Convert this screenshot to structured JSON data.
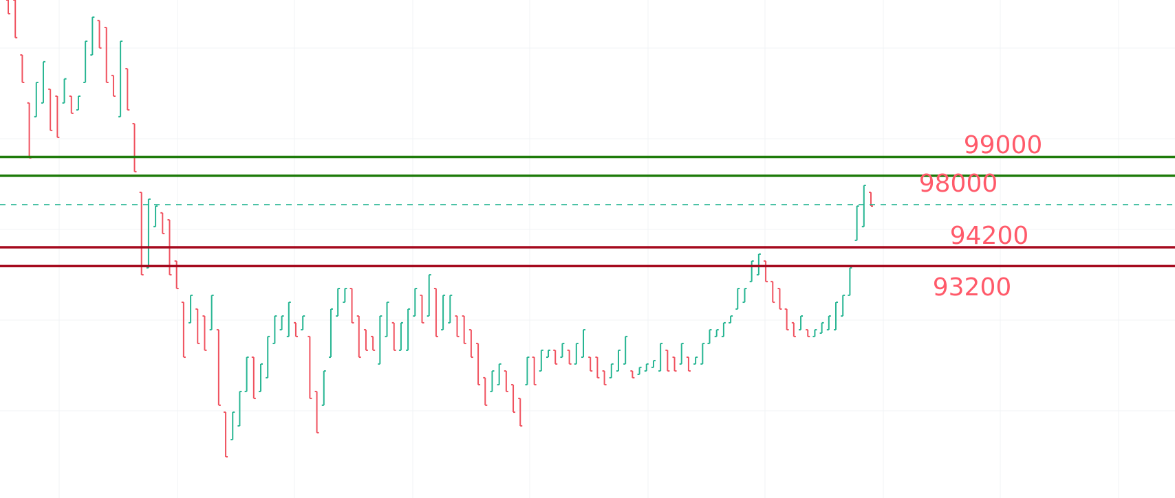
{
  "chart_data": {
    "type": "ohlc",
    "ylim": [
      80880,
      107340
    ],
    "grid": true,
    "colors": {
      "up": "#26b592",
      "down": "#f0525f",
      "support": "#a50a1e",
      "resistance": "#1e7b0a",
      "label": "#ff5a6a",
      "current_line": "#26b592",
      "grid": "#f1f3f6"
    },
    "bars_format": [
      "open",
      "high",
      "low",
      "close"
    ],
    "bars": [
      [
        107340,
        107340,
        106610,
        106610
      ],
      [
        107340,
        107340,
        105340,
        105340
      ],
      [
        104420,
        104420,
        102960,
        102960
      ],
      [
        101870,
        101870,
        98950,
        98950
      ],
      [
        101140,
        102960,
        101140,
        102960
      ],
      [
        101870,
        104060,
        101870,
        104060
      ],
      [
        102600,
        102600,
        100410,
        100410
      ],
      [
        102230,
        102230,
        100040,
        100040
      ],
      [
        101870,
        103150,
        101870,
        103150
      ],
      [
        102230,
        102230,
        101320,
        101320
      ],
      [
        101500,
        102230,
        101500,
        102230
      ],
      [
        102960,
        105150,
        102960,
        105150
      ],
      [
        104420,
        106430,
        104420,
        106430
      ],
      [
        106250,
        106250,
        104790,
        104790
      ],
      [
        105880,
        105880,
        102960,
        102960
      ],
      [
        103330,
        103330,
        102230,
        102230
      ],
      [
        101140,
        105150,
        101140,
        105150
      ],
      [
        103690,
        103690,
        101500,
        101500
      ],
      [
        100770,
        100770,
        98220,
        98220
      ],
      [
        97120,
        97120,
        92740,
        92740
      ],
      [
        93110,
        96760,
        93110,
        96760
      ],
      [
        95300,
        96390,
        95300,
        96390
      ],
      [
        96030,
        96030,
        94930,
        94930
      ],
      [
        95660,
        95660,
        92740,
        92740
      ],
      [
        93470,
        93470,
        92010,
        92010
      ],
      [
        91280,
        91280,
        88360,
        88360
      ],
      [
        90190,
        91650,
        90190,
        91650
      ],
      [
        90920,
        90920,
        89090,
        89090
      ],
      [
        90550,
        90550,
        88730,
        88730
      ],
      [
        89820,
        91650,
        89820,
        91650
      ],
      [
        89820,
        89820,
        85810,
        85810
      ],
      [
        85440,
        85440,
        83070,
        83070
      ],
      [
        83980,
        85440,
        83980,
        85440
      ],
      [
        84710,
        86540,
        84710,
        86540
      ],
      [
        86540,
        88360,
        86540,
        88360
      ],
      [
        88360,
        88360,
        86170,
        86170
      ],
      [
        86540,
        88000,
        86540,
        88000
      ],
      [
        87270,
        89460,
        87270,
        89460
      ],
      [
        89090,
        90550,
        89090,
        90550
      ],
      [
        89820,
        90550,
        89820,
        90550
      ],
      [
        89460,
        91280,
        89460,
        91280
      ],
      [
        90190,
        90190,
        89460,
        89460
      ],
      [
        89820,
        90550,
        89820,
        90550
      ],
      [
        89460,
        89460,
        86170,
        86170
      ],
      [
        86540,
        86540,
        84350,
        84350
      ],
      [
        85810,
        87630,
        85810,
        87630
      ],
      [
        88360,
        90920,
        88360,
        90920
      ],
      [
        90550,
        92010,
        90550,
        92010
      ],
      [
        91280,
        92010,
        91280,
        92010
      ],
      [
        92010,
        92010,
        90190,
        90190
      ],
      [
        90550,
        90550,
        88360,
        88360
      ],
      [
        89820,
        89820,
        88730,
        88730
      ],
      [
        89460,
        89460,
        88730,
        88730
      ],
      [
        88000,
        90550,
        88000,
        90550
      ],
      [
        89460,
        91280,
        89460,
        91280
      ],
      [
        90190,
        90190,
        88730,
        88730
      ],
      [
        88730,
        90190,
        88730,
        90190
      ],
      [
        88730,
        90920,
        88730,
        90920
      ],
      [
        90550,
        92010,
        90550,
        92010
      ],
      [
        91650,
        91650,
        90190,
        90190
      ],
      [
        90550,
        92740,
        90550,
        92740
      ],
      [
        92010,
        92010,
        89460,
        89460
      ],
      [
        89820,
        91650,
        89820,
        91650
      ],
      [
        90190,
        91650,
        90190,
        91650
      ],
      [
        90550,
        90550,
        89460,
        89460
      ],
      [
        90550,
        90550,
        89090,
        89090
      ],
      [
        89820,
        89820,
        88360,
        88360
      ],
      [
        89090,
        89090,
        86900,
        86900
      ],
      [
        87270,
        87270,
        85810,
        85810
      ],
      [
        86540,
        87630,
        86540,
        87630
      ],
      [
        86900,
        88000,
        86900,
        88000
      ],
      [
        87630,
        87630,
        86540,
        86540
      ],
      [
        86900,
        86900,
        85440,
        85440
      ],
      [
        86170,
        86170,
        84710,
        84710
      ],
      [
        86900,
        88360,
        86900,
        88360
      ],
      [
        88360,
        88360,
        86900,
        86900
      ],
      [
        87630,
        88730,
        87630,
        88730
      ],
      [
        88360,
        88730,
        88360,
        88730
      ],
      [
        88730,
        88730,
        88000,
        88000
      ],
      [
        88360,
        89090,
        88360,
        89090
      ],
      [
        88730,
        88730,
        88000,
        88000
      ],
      [
        88000,
        89090,
        88000,
        89090
      ],
      [
        88360,
        89820,
        88360,
        89820
      ],
      [
        88360,
        88360,
        87630,
        87630
      ],
      [
        88360,
        88360,
        87270,
        87270
      ],
      [
        87630,
        87630,
        86900,
        86900
      ],
      [
        87270,
        88000,
        87270,
        88000
      ],
      [
        87630,
        88730,
        87630,
        88730
      ],
      [
        88000,
        89460,
        88000,
        89460
      ],
      [
        87630,
        87630,
        87270,
        87270
      ],
      [
        87450,
        87820,
        87450,
        87820
      ],
      [
        87630,
        88000,
        87630,
        88000
      ],
      [
        87820,
        88180,
        87820,
        88180
      ],
      [
        87630,
        89090,
        87630,
        89090
      ],
      [
        88730,
        88730,
        87630,
        87630
      ],
      [
        88360,
        88360,
        87630,
        87630
      ],
      [
        88000,
        89090,
        88000,
        89090
      ],
      [
        88360,
        88360,
        87630,
        87630
      ],
      [
        88000,
        88360,
        88000,
        88360
      ],
      [
        88000,
        89090,
        88000,
        89090
      ],
      [
        89090,
        89820,
        89090,
        89820
      ],
      [
        89460,
        89820,
        89460,
        89820
      ],
      [
        89460,
        90190,
        89460,
        90190
      ],
      [
        90190,
        90550,
        90190,
        90550
      ],
      [
        90920,
        92010,
        90920,
        92010
      ],
      [
        91280,
        92010,
        91280,
        92010
      ],
      [
        92380,
        93470,
        92380,
        93470
      ],
      [
        92740,
        93840,
        92740,
        93840
      ],
      [
        93470,
        93470,
        92380,
        92380
      ],
      [
        92380,
        92380,
        91280,
        91280
      ],
      [
        92010,
        92010,
        90920,
        90920
      ],
      [
        90920,
        90920,
        89820,
        89820
      ],
      [
        90190,
        90190,
        89460,
        89460
      ],
      [
        89820,
        90550,
        89820,
        90550
      ],
      [
        89820,
        89820,
        89460,
        89460
      ],
      [
        89460,
        89820,
        89460,
        89820
      ],
      [
        89640,
        90190,
        89640,
        90190
      ],
      [
        89820,
        90550,
        89820,
        90550
      ],
      [
        89820,
        91280,
        89820,
        91280
      ],
      [
        90550,
        91650,
        90550,
        91650
      ],
      [
        91650,
        93110,
        91650,
        93110
      ],
      [
        94570,
        96390,
        94570,
        96390
      ],
      [
        95300,
        97490,
        95300,
        97490
      ],
      [
        97120,
        97120,
        96390,
        96390
      ]
    ],
    "current_price_line": 96470,
    "levels": [
      {
        "price": 99000,
        "label": "99000",
        "kind": "resistance"
      },
      {
        "price": 98000,
        "label": "98000",
        "kind": "resistance"
      },
      {
        "price": 94200,
        "label": "94200",
        "kind": "support"
      },
      {
        "price": 93200,
        "label": "93200",
        "kind": "support"
      }
    ]
  }
}
